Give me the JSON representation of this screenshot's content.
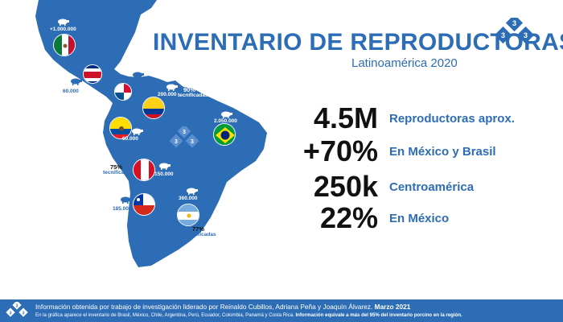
{
  "title": "INVENTARIO DE REPRODUCTORAS",
  "subtitle": "Latinoamérica 2020",
  "logo_digits": [
    "3",
    "3",
    "3"
  ],
  "stats": [
    {
      "value": "4.5M",
      "label": "Reproductoras aprox."
    },
    {
      "value": "+70%",
      "label": "En México y Brasil"
    },
    {
      "value": "250k",
      "label": "Centroamérica"
    },
    {
      "value": "22%",
      "label": "En México"
    }
  ],
  "map_labels": {
    "mexico": "+1.000.000",
    "costa_rica": "60.000",
    "panama": "30.000",
    "colombia_value": "200.000",
    "colombia_pct": "90%",
    "colombia_pct_note": "tecnificadas",
    "brazil": "2.050.000",
    "ecuador": "60.000",
    "peru_value": "150.000",
    "peru_pct": "75%",
    "peru_pct_note": "tecnificadas",
    "chile": "185.000",
    "argentina_value": "360.000",
    "argentina_pct": "77%",
    "argentina_pct_note": "tecnificadas"
  },
  "footer": {
    "line1": "Información obtenida por trabajo de investigación liderado por Reinaldo Cubillos, Adriana Peña y Joaquín Álvarez.",
    "line1_date": "Marzo 2021",
    "line2": "En la gráfica aparece el inventario de Brasil, México, Chile, Argentina, Perú, Ecuador, Colombia, Panamá y Costa Rica.",
    "line2_bold": "Información equivale a más del 95% del inventario porcino en la región."
  },
  "colors": {
    "brand": "#2d6db5",
    "footer": "#2d6db5",
    "map": "#2d6db5"
  },
  "icons": [
    "pig-icon",
    "logo-333-icon"
  ]
}
